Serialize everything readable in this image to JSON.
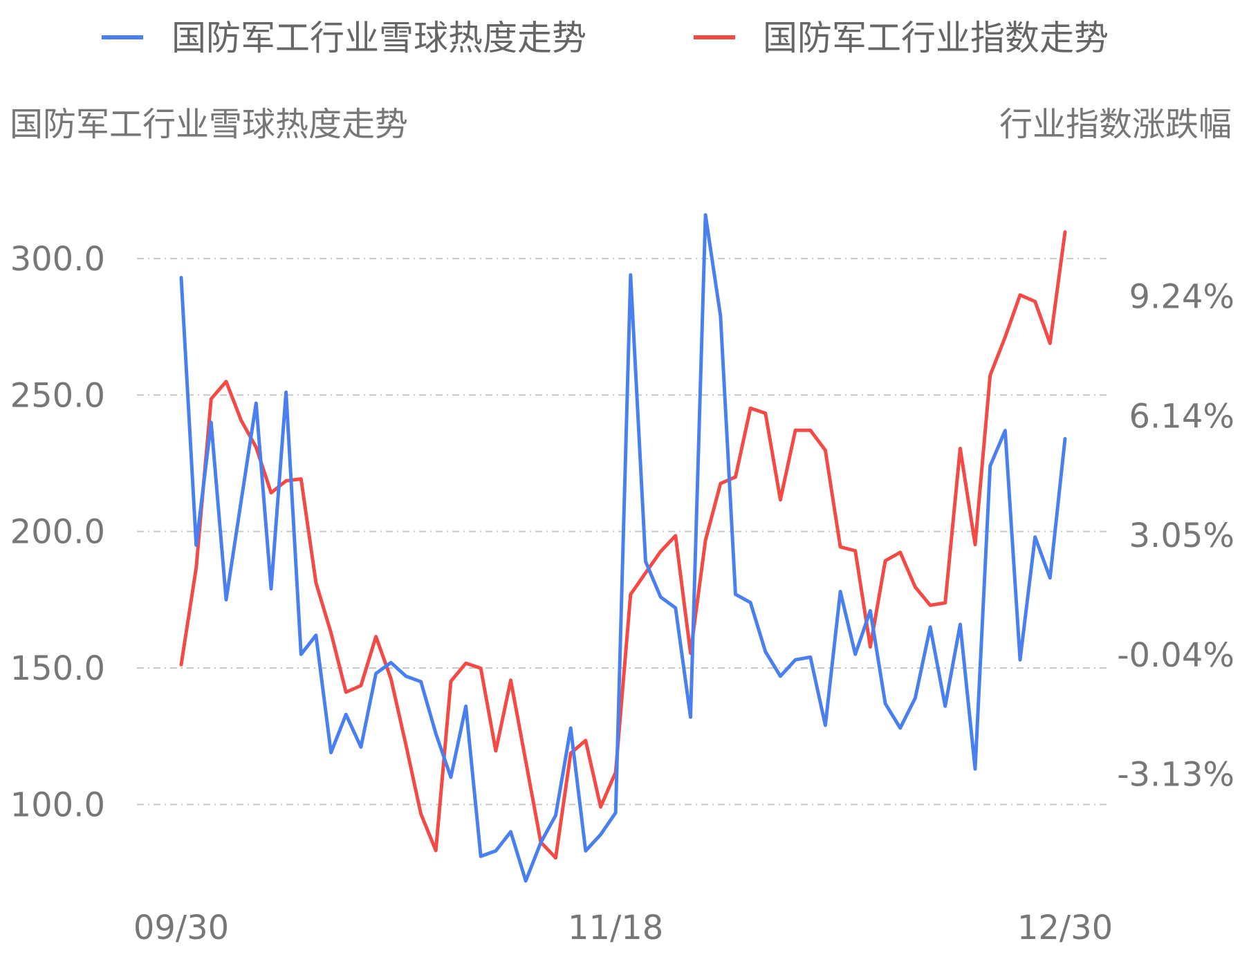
{
  "chart_data": {
    "type": "line",
    "legend": {
      "position": "top",
      "entries": [
        {
          "label": "国防军工行业雪球热度走势",
          "color": "#4a7ff0"
        },
        {
          "label": "国防军工行业指数走势",
          "color": "#f44a45"
        }
      ]
    },
    "left_axis_title": "国防军工行业雪球热度走势",
    "right_axis_title": "行业指数涨跌幅",
    "left_axis": {
      "range": [
        72.5,
        340
      ],
      "ticks": [
        100.0,
        150.0,
        200.0,
        250.0,
        300.0
      ],
      "tick_labels": [
        "100.0",
        "150.0",
        "200.0",
        "250.0",
        "300.0"
      ]
    },
    "right_axis": {
      "range": [
        -5.86,
        13.04
      ],
      "ticks": [
        -3.13,
        -0.04,
        3.05,
        6.14,
        9.24
      ],
      "tick_labels": [
        "-3.13%",
        "-0.04%",
        "3.05%",
        "6.14%",
        "9.24%"
      ]
    },
    "grid": true,
    "x_tick_labels": [
      {
        "index": 0,
        "label": "09/30"
      },
      {
        "index": 29,
        "label": "11/18"
      },
      {
        "index": 59,
        "label": "12/30"
      }
    ],
    "series": [
      {
        "name": "国防军工行业雪球热度走势",
        "axis": "left",
        "color": "#4a7ff0",
        "values": [
          293,
          195,
          240,
          175,
          211,
          247,
          179,
          251,
          155,
          162,
          119,
          133,
          121,
          148,
          152,
          147,
          145,
          126,
          110,
          136,
          81,
          83,
          90,
          72,
          86,
          96,
          128,
          83,
          89,
          97,
          294,
          189,
          176,
          172,
          132,
          316,
          279,
          177,
          174,
          156,
          147,
          153,
          154,
          129,
          178,
          155,
          171,
          137,
          128,
          139,
          165,
          136,
          166,
          113,
          224,
          237,
          153,
          198,
          183,
          234
        ]
      },
      {
        "name": "国防军工行业指数走势",
        "axis": "right",
        "color": "#f44a45",
        "values": [
          -0.3,
          2.21,
          6.58,
          7.03,
          6.03,
          5.33,
          4.15,
          4.46,
          4.51,
          1.82,
          0.53,
          -1.01,
          -0.84,
          0.43,
          -0.66,
          -2.37,
          -4.16,
          -5.11,
          -0.73,
          -0.26,
          -0.39,
          -2.53,
          -0.7,
          -2.79,
          -4.89,
          -5.3,
          -2.59,
          -2.26,
          -3.98,
          -3.08,
          1.52,
          2.08,
          2.63,
          3.04,
          0.0,
          2.92,
          4.39,
          4.56,
          6.34,
          6.21,
          3.97,
          5.77,
          5.77,
          5.25,
          2.75,
          2.65,
          0.16,
          2.39,
          2.61,
          1.71,
          1.24,
          1.3,
          5.3,
          2.81,
          7.19,
          8.18,
          9.27,
          9.1,
          8.02,
          10.9
        ]
      }
    ]
  }
}
